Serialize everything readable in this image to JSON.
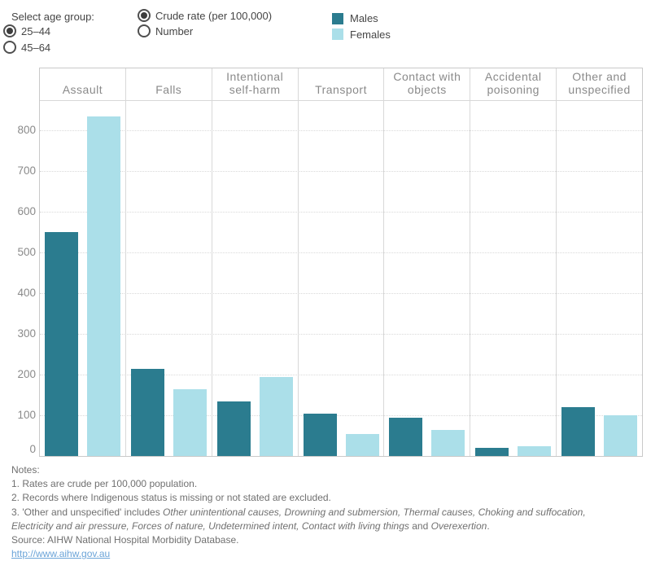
{
  "controls": {
    "age_group_label": "Select age group:",
    "age_options": [
      {
        "label": "25–44",
        "selected": true
      },
      {
        "label": "45–64",
        "selected": false
      }
    ],
    "measure_options": [
      {
        "label": "Crude rate (per 100,000)",
        "selected": true
      },
      {
        "label": "Number",
        "selected": false
      }
    ]
  },
  "legend": {
    "items": [
      {
        "label": "Males",
        "color": "#2b7c8f"
      },
      {
        "label": "Females",
        "color": "#abdfe9"
      }
    ]
  },
  "chart_data": {
    "type": "bar",
    "categories": [
      "Assault",
      "Falls",
      "Intentional self-harm",
      "Transport",
      "Contact with objects",
      "Accidental poisoning",
      "Other and unspecified"
    ],
    "series": [
      {
        "name": "Males",
        "color": "#2b7c8f",
        "values": [
          550,
          215,
          135,
          105,
          95,
          20,
          120
        ]
      },
      {
        "name": "Females",
        "color": "#abdfe9",
        "values": [
          835,
          165,
          195,
          55,
          65,
          25,
          100
        ]
      }
    ],
    "title": "",
    "xlabel": "",
    "ylabel": "",
    "yticks": [
      0,
      100,
      200,
      300,
      400,
      500,
      600,
      700,
      800
    ],
    "ylim": [
      0,
      878
    ],
    "grid": "horizontal-dotted",
    "legend_position": "top"
  },
  "notes": {
    "title": "Notes:",
    "lines": [
      {
        "parts": [
          {
            "t": "1. Rates are crude per 100,000 population.",
            "i": false
          }
        ]
      },
      {
        "parts": [
          {
            "t": "2. Records where Indigenous status is missing or not stated are excluded.",
            "i": false
          }
        ]
      },
      {
        "parts": [
          {
            "t": "3. 'Other and unspecified' includes ",
            "i": false
          },
          {
            "t": "Other unintentional causes, Drowning and submersion, Thermal causes, Choking and suffocation,",
            "i": true
          }
        ]
      },
      {
        "parts": [
          {
            "t": "Electricity and air pressure, Forces of nature, Undetermined intent, Contact with living things",
            "i": true
          },
          {
            "t": " and ",
            "i": false
          },
          {
            "t": "Overexertion",
            "i": true
          },
          {
            "t": ".",
            "i": false
          }
        ]
      },
      {
        "parts": [
          {
            "t": "Source: AIHW National Hospital Morbidity Database.",
            "i": false
          }
        ]
      }
    ],
    "link": "http://www.aihw.gov.au"
  }
}
